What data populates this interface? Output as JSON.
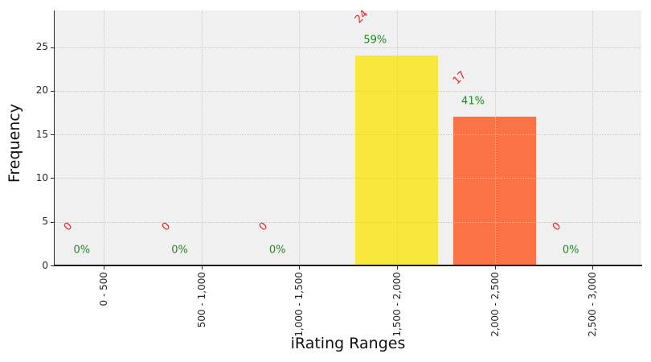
{
  "chart_data": {
    "type": "bar",
    "title": "",
    "xlabel": "iRating Ranges",
    "ylabel": "Frequency",
    "categories": [
      "0 - 500",
      "500 - 1,000",
      "1,000 - 1,500",
      "1,500 - 2,000",
      "2,000 - 2,500",
      "2,500 - 3,000"
    ],
    "values": [
      0,
      0,
      0,
      24,
      17,
      0
    ],
    "count_labels": [
      "0",
      "0",
      "0",
      "24",
      "17",
      "0"
    ],
    "percent_labels": [
      "0%",
      "0%",
      "0%",
      "59%",
      "41%",
      "0%"
    ],
    "bar_colors": [
      null,
      null,
      null,
      "#FAE73E",
      "#F97347",
      null
    ],
    "yticks": [
      0,
      5,
      10,
      15,
      20,
      25
    ],
    "ylim": [
      0,
      29.2
    ],
    "legend": "none",
    "grid": "dotted, horizontal and vertical, drawn above bars",
    "colors": {
      "plot_background": "#f0f0f0",
      "figure_background": "#ffffff",
      "gridline": "#c9c9c9",
      "count_label": "#E92525",
      "percent_label": "#1D8A1D",
      "axis_text": "#262626"
    }
  }
}
